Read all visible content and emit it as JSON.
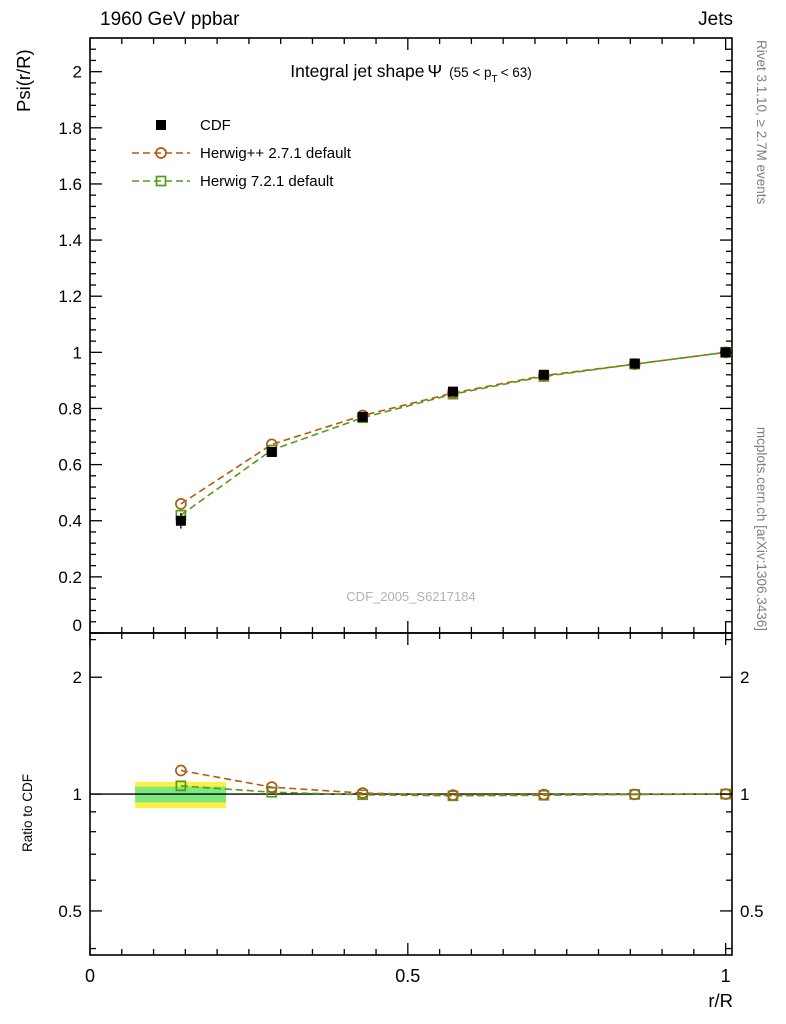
{
  "header": {
    "left": "1960 GeV ppbar",
    "right": "Jets"
  },
  "title": {
    "text": "Integral jet shape",
    "symbol": "Ψ",
    "cut_pre": "(55 < p",
    "cut_sub": "T",
    "cut_post": "< 63)"
  },
  "axes": {
    "main_ylabel": "Psi(r/R)",
    "ratio_ylabel": "Ratio to CDF",
    "xlabel": "r/R"
  },
  "side_notes": {
    "rivet": "Rivet 3.1.10, ≥ 2.7M events",
    "mcplots": "mcplots.cern.ch [arXiv:1306.3436]"
  },
  "watermark": "CDF_2005_S6217184",
  "chart_data": {
    "type": "line",
    "title": "Integral jet shape Ψ (55 < p_T < 63)",
    "xlabel": "r/R",
    "ylabel_main": "Psi(r/R)",
    "ylabel_ratio": "Ratio to CDF",
    "x": [
      0.143,
      0.286,
      0.429,
      0.571,
      0.714,
      0.857,
      1.0
    ],
    "x_axis": {
      "min": 0,
      "max": 1.01,
      "major_ticks": [
        0,
        0.5,
        1
      ],
      "minor_step": 0.05
    },
    "main_axis": {
      "min": 0,
      "max": 2.12,
      "major_ticks": [
        0,
        0.2,
        0.4,
        0.6,
        0.8,
        1,
        1.2,
        1.4,
        1.6,
        1.8,
        2
      ],
      "minor_step": 0.04
    },
    "ratio_axis": {
      "scale": "log",
      "min": 0.385,
      "max": 2.6,
      "major_ticks": [
        0.5,
        1,
        2
      ],
      "minor_ticks": [
        0.4,
        0.6,
        0.7,
        0.8,
        0.9,
        2.5
      ]
    },
    "ratio_reference": 1,
    "series": [
      {
        "name": "CDF",
        "type": "data",
        "color": "#000000",
        "marker": "square-filled",
        "line": "none",
        "values": [
          0.4,
          0.645,
          0.77,
          0.86,
          0.92,
          0.96,
          1.0
        ],
        "errors": [
          0.028,
          0.015,
          0.01,
          0.008,
          0.006,
          0.004,
          0.002
        ]
      },
      {
        "name": "Herwig++ 2.7.1 default",
        "type": "mc",
        "color": "#b05c12",
        "marker": "circle-open",
        "line": "dashed",
        "values": [
          0.46,
          0.672,
          0.775,
          0.855,
          0.917,
          0.958,
          1.0
        ],
        "ratio": [
          1.15,
          1.042,
          1.006,
          0.994,
          0.997,
          0.998,
          1.0
        ]
      },
      {
        "name": "Herwig 7.2.1 default",
        "type": "mc",
        "color": "#539b18",
        "marker": "square-open",
        "line": "dashed",
        "values": [
          0.42,
          0.652,
          0.767,
          0.851,
          0.914,
          0.958,
          1.0
        ],
        "ratio": [
          1.05,
          1.011,
          0.996,
          0.99,
          0.993,
          0.998,
          1.0
        ]
      }
    ],
    "ratio_bands": [
      {
        "x0": 0.071,
        "x1": 0.214,
        "y0": 0.92,
        "y1": 1.075,
        "color": "#ffee44"
      },
      {
        "x0": 0.071,
        "x1": 0.214,
        "y0": 0.952,
        "y1": 1.045,
        "color": "#7de87d"
      }
    ]
  }
}
